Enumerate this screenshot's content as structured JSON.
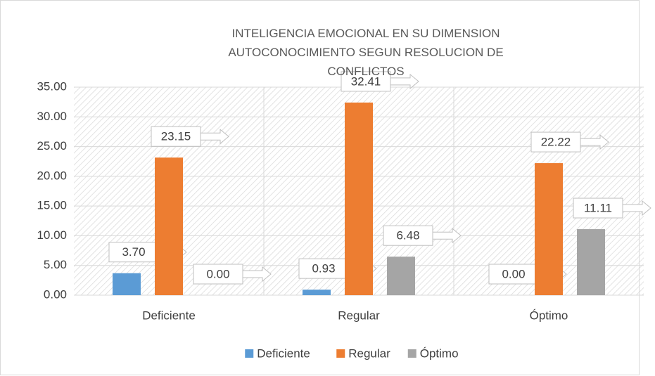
{
  "chart_data": {
    "type": "bar",
    "title": "INTELIGENCIA EMOCIONAL EN SU DIMENSION AUTOCONOCIMIENTO SEGUN RESOLUCION DE CONFLICTOS",
    "categories": [
      "Deficiente",
      "Regular",
      "Óptimo"
    ],
    "series": [
      {
        "name": "Deficiente",
        "color": "#5b9bd5",
        "values": [
          3.7,
          0.93,
          0
        ],
        "value_labels": [
          "3.70",
          "0.93",
          "0.00"
        ]
      },
      {
        "name": "Regular",
        "color": "#ed7d31",
        "values": [
          23.15,
          32.41,
          22.22
        ],
        "value_labels": [
          "23.15",
          "32.41",
          "22.22"
        ]
      },
      {
        "name": "Óptimo",
        "color": "#a5a5a5",
        "values": [
          0,
          6.48,
          11.11
        ],
        "value_labels": [
          "0.00",
          "6.48",
          "11.11"
        ]
      }
    ],
    "ylim": [
      0,
      35
    ],
    "yticks": [
      {
        "value": 0,
        "label": "0.00"
      },
      {
        "value": 5,
        "label": "5.00"
      },
      {
        "value": 10,
        "label": "10.00"
      },
      {
        "value": 15,
        "label": "15.00"
      },
      {
        "value": 20,
        "label": "20.00"
      },
      {
        "value": 25,
        "label": "25.00"
      },
      {
        "value": 30,
        "label": "30.00"
      },
      {
        "value": 35,
        "label": "35.00"
      }
    ],
    "grid": true,
    "legend": "bottom"
  }
}
